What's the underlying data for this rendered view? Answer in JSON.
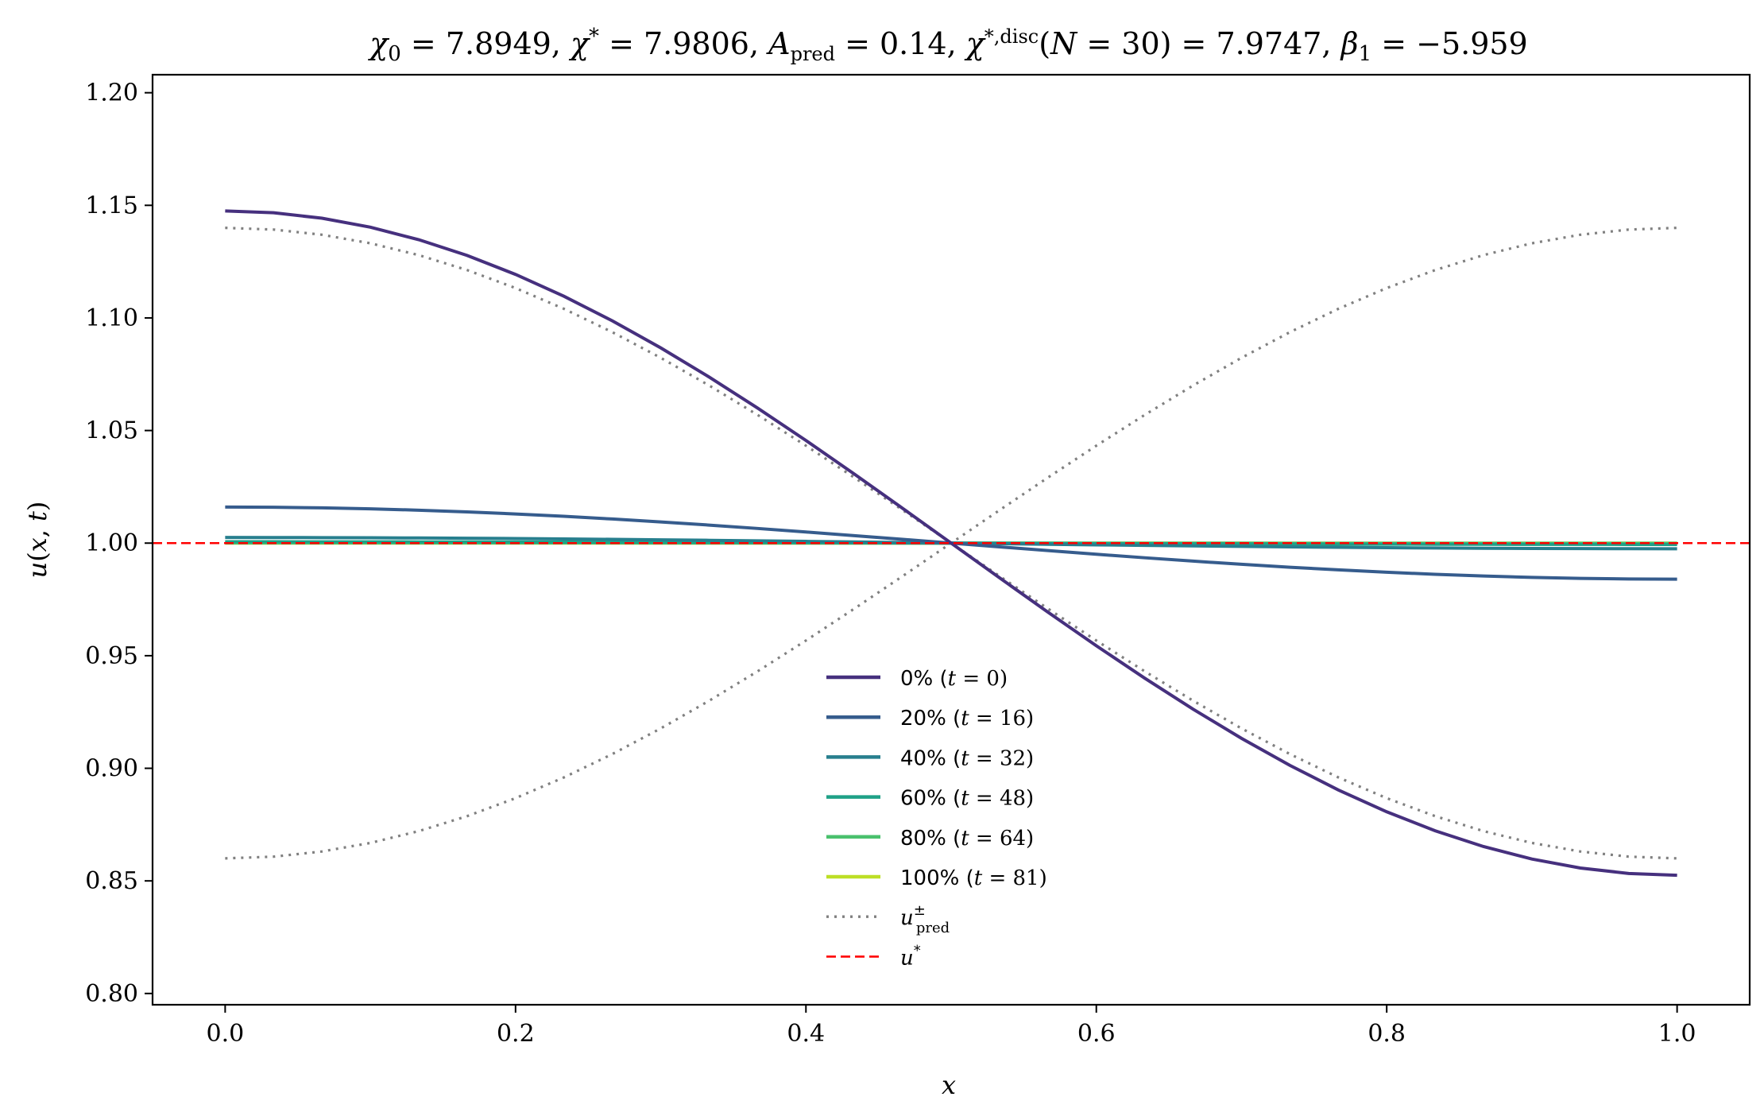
{
  "chart_data": {
    "type": "line",
    "title": "χ₀ = 7.8949,  χ* = 7.9806,  A_pred = 0.14,  χ*,disc(N = 30) = 7.9747,  β₁ = −5.959",
    "xlabel": "x",
    "ylabel": "u(x, t)",
    "xlim": [
      -0.05,
      1.05
    ],
    "ylim": [
      0.795,
      1.208
    ],
    "xticks": [
      "0.0",
      "0.2",
      "0.4",
      "0.6",
      "0.8",
      "1.0"
    ],
    "yticks": [
      "0.80",
      "0.85",
      "0.90",
      "0.95",
      "1.00",
      "1.05",
      "1.10",
      "1.15",
      "1.20"
    ],
    "grid": false,
    "legend_position": "lower-center",
    "series": [
      {
        "name": "0% (t = 0)",
        "color": "#46307e",
        "style": "solid",
        "kind": "cos",
        "x": [
          0,
          1
        ],
        "amplitude": 0.1475,
        "y_at_0": 1.1475,
        "y_at_1": 0.8525
      },
      {
        "name": "20% (t = 16)",
        "color": "#365c8d",
        "style": "solid",
        "kind": "cos",
        "x": [
          0,
          1
        ],
        "amplitude": 0.016,
        "y_at_0": 1.016,
        "y_at_1": 0.984
      },
      {
        "name": "40% (t = 32)",
        "color": "#277f8e",
        "style": "solid",
        "kind": "cos",
        "x": [
          0,
          1
        ],
        "amplitude": 0.0025,
        "y_at_0": 1.0025,
        "y_at_1": 0.9975
      },
      {
        "name": "60% (t = 48)",
        "color": "#1fa187",
        "style": "solid",
        "kind": "cos",
        "x": [
          0,
          1
        ],
        "amplitude": 0.0006,
        "y_at_0": 1.0006,
        "y_at_1": 0.9994
      },
      {
        "name": "80% (t = 64)",
        "color": "#4ac16d",
        "style": "solid",
        "kind": "cos",
        "x": [
          0,
          1
        ],
        "amplitude": 0.0001,
        "y_at_0": 1.0001,
        "y_at_1": 0.9999
      },
      {
        "name": "100% (t = 81)",
        "color": "#bddf26",
        "style": "solid",
        "kind": "cos",
        "x": [
          0,
          1
        ],
        "amplitude": 0.0,
        "y_at_0": 1.0,
        "y_at_1": 1.0
      },
      {
        "name": "u±pred",
        "color": "#808080",
        "style": "dotted",
        "kind": "cos-pair",
        "x": [
          0,
          1
        ],
        "amplitude": 0.14,
        "y_at_0": [
          1.14,
          0.86
        ],
        "y_at_1": [
          0.86,
          1.14
        ]
      },
      {
        "name": "u*",
        "color": "#ff0000",
        "style": "dashed",
        "kind": "hline",
        "y": 1.0
      }
    ]
  }
}
